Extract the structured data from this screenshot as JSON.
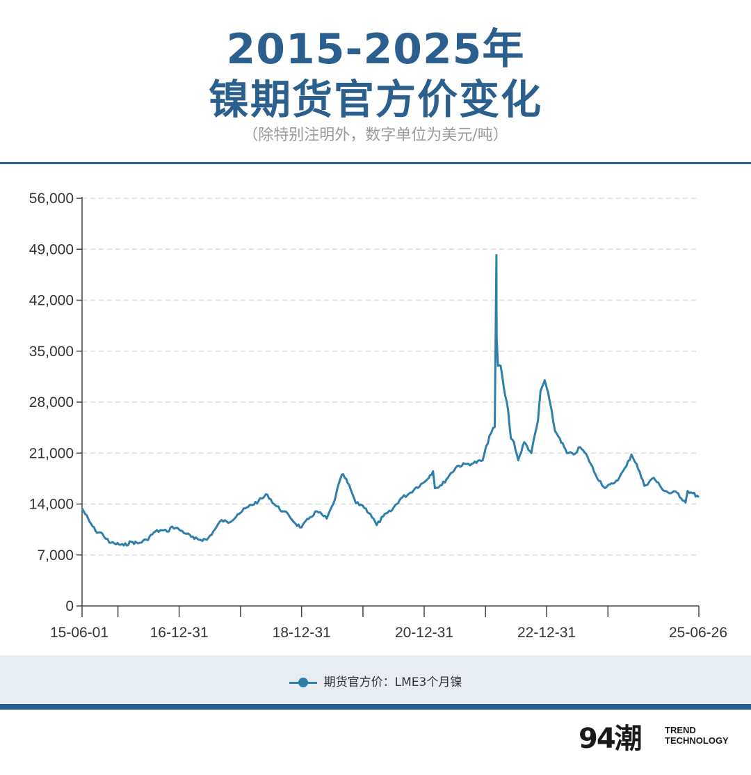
{
  "header": {
    "title_line1": "2015-2025年",
    "title_line2": "镍期货官方价变化",
    "subtitle": "（除特别注明外，数字单位为美元/吨）"
  },
  "legend": {
    "label": "期货官方价：LME3个月镍",
    "color": "#2f7fab"
  },
  "brand": {
    "mark": "94潮",
    "line1": "TREND",
    "line2": "TECHNOLOGY"
  },
  "colors": {
    "accent": "#2b5f8e",
    "series": "#2f7fab",
    "grid": "#dddddd",
    "legend_bg": "#e8edf4"
  },
  "chart_data": {
    "type": "line",
    "title": "2015-2025年 镍期货官方价变化",
    "ylim": [
      0,
      56000
    ],
    "yticks": [
      0,
      7000,
      14000,
      21000,
      28000,
      35000,
      42000,
      49000,
      56000
    ],
    "ytick_labels": [
      "0",
      "7,000",
      "14,000",
      "21,000",
      "28,000",
      "35,000",
      "42,000",
      "49,000",
      "56,000"
    ],
    "xlim": [
      "2015-06-01",
      "2025-06-26"
    ],
    "xtick_labels": [
      "15-06-01",
      "16-12-31",
      "18-12-31",
      "20-12-31",
      "22-12-31",
      "25-06-26"
    ],
    "xtick_label_dates": [
      "2015-06-01",
      "2016-12-31",
      "2018-12-31",
      "2020-12-31",
      "2022-12-31",
      "2025-06-26"
    ],
    "xtick_mark_dates": [
      "2015-06-01",
      "2016-01-01",
      "2016-12-31",
      "2018-01-01",
      "2018-12-31",
      "2020-01-01",
      "2020-12-31",
      "2022-01-01",
      "2022-12-31",
      "2024-01-01",
      "2025-06-26"
    ],
    "grid": true,
    "legend_position": "bottom",
    "series": [
      {
        "name": "期货官方价：LME3个月镍",
        "x": [
          "2015-06-01",
          "2015-07-15",
          "2015-08-20",
          "2015-10-01",
          "2015-11-10",
          "2015-12-10",
          "2016-02-05",
          "2016-03-20",
          "2016-05-01",
          "2016-06-20",
          "2016-08-10",
          "2016-09-20",
          "2016-10-20",
          "2016-11-20",
          "2016-12-31",
          "2017-02-15",
          "2017-04-01",
          "2017-06-15",
          "2017-08-01",
          "2017-09-10",
          "2017-10-20",
          "2017-12-15",
          "2018-02-15",
          "2018-04-18",
          "2018-06-10",
          "2018-07-20",
          "2018-09-10",
          "2018-10-15",
          "2018-11-25",
          "2018-12-31",
          "2019-02-20",
          "2019-04-01",
          "2019-05-30",
          "2019-07-10",
          "2019-08-20",
          "2019-09-05",
          "2019-10-20",
          "2019-11-20",
          "2019-12-31",
          "2020-02-15",
          "2020-03-23",
          "2020-05-01",
          "2020-06-15",
          "2020-08-15",
          "2020-10-01",
          "2020-11-15",
          "2020-12-31",
          "2021-02-22",
          "2021-03-05",
          "2021-04-15",
          "2021-06-01",
          "2021-07-15",
          "2021-09-10",
          "2021-10-20",
          "2021-12-15",
          "2022-01-25",
          "2022-02-25",
          "2022-03-07",
          "2022-03-08",
          "2022-03-16",
          "2022-04-01",
          "2022-04-20",
          "2022-05-15",
          "2022-06-01",
          "2022-06-20",
          "2022-07-15",
          "2022-08-20",
          "2022-10-01",
          "2022-11-10",
          "2022-11-25",
          "2022-12-20",
          "2023-01-20",
          "2023-02-20",
          "2023-03-20",
          "2023-05-01",
          "2023-06-10",
          "2023-07-20",
          "2023-09-01",
          "2023-10-20",
          "2023-12-15",
          "2024-01-31",
          "2024-03-10",
          "2024-04-20",
          "2024-05-20",
          "2024-06-20",
          "2024-08-05",
          "2024-09-30",
          "2024-11-15",
          "2024-12-31",
          "2025-02-15",
          "2025-04-08",
          "2025-04-20",
          "2025-05-10",
          "2025-06-26"
        ],
        "y": [
          13400,
          11600,
          10300,
          9900,
          8700,
          8600,
          8300,
          8800,
          8600,
          9100,
          10200,
          10400,
          10200,
          10900,
          10500,
          9900,
          9200,
          9100,
          10500,
          11800,
          11400,
          12600,
          13600,
          14400,
          15300,
          14000,
          13000,
          12500,
          11300,
          10800,
          12200,
          13000,
          12000,
          14100,
          17500,
          18100,
          16000,
          14100,
          13800,
          12600,
          11100,
          12300,
          13000,
          14800,
          15400,
          16300,
          17000,
          18500,
          16200,
          16600,
          18000,
          19200,
          19500,
          19600,
          20000,
          23400,
          24600,
          48200,
          37000,
          33000,
          33000,
          30000,
          27000,
          23000,
          22500,
          20000,
          22500,
          21000,
          25500,
          29500,
          31000,
          28000,
          24000,
          23000,
          21000,
          20800,
          21800,
          20500,
          18000,
          16200,
          16800,
          17700,
          19200,
          20800,
          19500,
          16500,
          17600,
          16200,
          15500,
          15600,
          14200,
          15800,
          15600,
          14950
        ]
      }
    ]
  }
}
